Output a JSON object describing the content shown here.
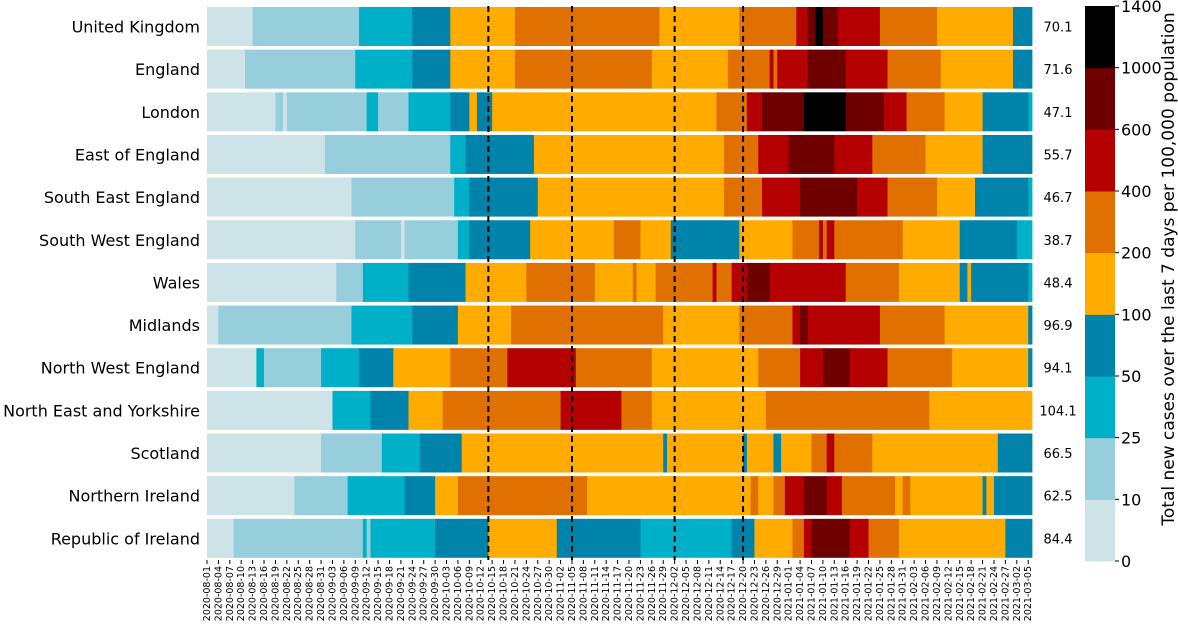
{
  "chart_data": {
    "type": "heatmap",
    "title": "",
    "xlabel": "",
    "ylabel": "",
    "colorbar": {
      "label": "Total new cases over the last 7 days per 100,000 population",
      "bounds": [
        0,
        10,
        25,
        50,
        100,
        200,
        400,
        600,
        1000,
        1400
      ],
      "tick_labels": [
        "0",
        "10",
        "25",
        "50",
        "100",
        "200",
        "400",
        "600",
        "1000",
        "1400"
      ],
      "colors": [
        "#cde3e8",
        "#96cedb",
        "#00b0c8",
        "#0083aa",
        "#ffab00",
        "#e07000",
        "#b40000",
        "#6e0000",
        "#000000"
      ]
    },
    "x_start": "2020-08-01",
    "x_end": "2021-03-06",
    "x_tick_labels": [
      "2020-08-01",
      "2020-08-07",
      "2020-08-13",
      "2020-08-19",
      "2020-08-25",
      "2020-08-31",
      "2020-09-06",
      "2020-09-12",
      "2020-09-18",
      "2020-09-24",
      "2020-09-30",
      "2020-10-06",
      "2020-10-12",
      "2020-10-18",
      "2020-10-24",
      "2020-10-30",
      "2020-11-05",
      "2020-11-11",
      "2020-11-17",
      "2020-11-23",
      "2020-11-29",
      "2020-12-05",
      "2020-12-11",
      "2020-12-17",
      "2020-12-23",
      "2020-12-29",
      "2021-01-04",
      "2021-01-10",
      "2021-01-16",
      "2021-01-22",
      "2021-01-28",
      "2021-02-03",
      "2021-02-09",
      "2021-02-15",
      "2021-02-21",
      "2021-02-27",
      "2021-03-05",
      "2020-08-04",
      "2020-08-10",
      "2020-08-16",
      "2020-08-22",
      "2020-08-28",
      "2020-09-03",
      "2020-09-09",
      "2020-09-15",
      "2020-09-21",
      "2020-09-27",
      "2020-10-03",
      "2020-10-09",
      "2020-10-15",
      "2020-10-21",
      "2020-10-27",
      "2020-11-02",
      "2020-11-08",
      "2020-11-14",
      "2020-11-20",
      "2020-11-26",
      "2020-12-02",
      "2020-12-08",
      "2020-12-14",
      "2020-12-20",
      "2020-12-26",
      "2021-01-01",
      "2021-01-07",
      "2021-01-13",
      "2021-01-19",
      "2021-01-25",
      "2021-01-31",
      "2021-02-06",
      "2021-02-12",
      "2021-02-18",
      "2021-02-24",
      "2021-03-02"
    ],
    "vertical_markers": [
      "2020-10-14",
      "2020-11-05",
      "2020-12-02",
      "2020-12-20"
    ],
    "rows": [
      {
        "name": "United Kingdom",
        "value_label": "70.1",
        "segments": [
          [
            "2020-08-01",
            0
          ],
          [
            "2020-08-13",
            1
          ],
          [
            "2020-09-10",
            2
          ],
          [
            "2020-09-24",
            3
          ],
          [
            "2020-10-04",
            4
          ],
          [
            "2020-10-21",
            5
          ],
          [
            "2020-11-28",
            4
          ],
          [
            "2020-12-19",
            5
          ],
          [
            "2021-01-03",
            6
          ],
          [
            "2021-01-06",
            7
          ],
          [
            "2021-01-08",
            8
          ],
          [
            "2021-01-10",
            7
          ],
          [
            "2021-01-14",
            6
          ],
          [
            "2021-01-25",
            5
          ],
          [
            "2021-02-09",
            4
          ],
          [
            "2021-03-01",
            3
          ]
        ]
      },
      {
        "name": "England",
        "value_label": "71.6",
        "segments": [
          [
            "2020-08-01",
            0
          ],
          [
            "2020-08-11",
            1
          ],
          [
            "2020-09-09",
            2
          ],
          [
            "2020-09-24",
            3
          ],
          [
            "2020-10-04",
            4
          ],
          [
            "2020-10-21",
            5
          ],
          [
            "2020-11-26",
            4
          ],
          [
            "2020-12-16",
            5
          ],
          [
            "2020-12-27",
            6
          ],
          [
            "2020-12-28",
            5
          ],
          [
            "2020-12-29",
            6
          ],
          [
            "2021-01-06",
            7
          ],
          [
            "2021-01-16",
            6
          ],
          [
            "2021-01-27",
            5
          ],
          [
            "2021-02-10",
            4
          ],
          [
            "2021-03-01",
            3
          ]
        ]
      },
      {
        "name": "London",
        "value_label": "47.1",
        "segments": [
          [
            "2020-08-01",
            0
          ],
          [
            "2020-08-19",
            1
          ],
          [
            "2020-08-21",
            0
          ],
          [
            "2020-08-22",
            1
          ],
          [
            "2020-09-12",
            2
          ],
          [
            "2020-09-15",
            1
          ],
          [
            "2020-09-23",
            2
          ],
          [
            "2020-10-04",
            3
          ],
          [
            "2020-10-09",
            4
          ],
          [
            "2020-10-11",
            3
          ],
          [
            "2020-10-15",
            4
          ],
          [
            "2020-12-13",
            5
          ],
          [
            "2020-12-21",
            6
          ],
          [
            "2020-12-25",
            7
          ],
          [
            "2021-01-05",
            8
          ],
          [
            "2021-01-16",
            7
          ],
          [
            "2021-01-26",
            6
          ],
          [
            "2021-02-01",
            5
          ],
          [
            "2021-02-11",
            4
          ],
          [
            "2021-02-21",
            3
          ],
          [
            "2021-03-05",
            2
          ]
        ]
      },
      {
        "name": "East of England",
        "value_label": "55.7",
        "segments": [
          [
            "2020-08-01",
            0
          ],
          [
            "2020-09-01",
            1
          ],
          [
            "2020-10-04",
            2
          ],
          [
            "2020-10-08",
            3
          ],
          [
            "2020-10-26",
            4
          ],
          [
            "2020-12-15",
            5
          ],
          [
            "2020-12-24",
            6
          ],
          [
            "2021-01-01",
            7
          ],
          [
            "2021-01-13",
            6
          ],
          [
            "2021-01-23",
            5
          ],
          [
            "2021-02-06",
            4
          ],
          [
            "2021-02-21",
            3
          ]
        ]
      },
      {
        "name": "South East England",
        "value_label": "46.7",
        "segments": [
          [
            "2020-08-01",
            0
          ],
          [
            "2020-09-08",
            1
          ],
          [
            "2020-10-05",
            2
          ],
          [
            "2020-10-09",
            3
          ],
          [
            "2020-10-27",
            4
          ],
          [
            "2020-12-15",
            5
          ],
          [
            "2020-12-25",
            6
          ],
          [
            "2021-01-04",
            7
          ],
          [
            "2021-01-19",
            6
          ],
          [
            "2021-01-27",
            5
          ],
          [
            "2021-02-09",
            4
          ],
          [
            "2021-02-19",
            3
          ],
          [
            "2021-03-05",
            2
          ]
        ]
      },
      {
        "name": "South West England",
        "value_label": "38.7",
        "segments": [
          [
            "2020-08-01",
            0
          ],
          [
            "2020-09-09",
            1
          ],
          [
            "2020-09-21",
            0
          ],
          [
            "2020-09-22",
            1
          ],
          [
            "2020-10-06",
            2
          ],
          [
            "2020-10-09",
            3
          ],
          [
            "2020-10-25",
            4
          ],
          [
            "2020-11-16",
            5
          ],
          [
            "2020-11-23",
            4
          ],
          [
            "2020-12-01",
            3
          ],
          [
            "2020-12-19",
            4
          ],
          [
            "2021-01-02",
            5
          ],
          [
            "2021-01-09",
            6
          ],
          [
            "2021-01-10",
            5
          ],
          [
            "2021-01-11",
            6
          ],
          [
            "2021-01-13",
            5
          ],
          [
            "2021-01-31",
            4
          ],
          [
            "2021-02-15",
            3
          ],
          [
            "2021-03-02",
            2
          ]
        ]
      },
      {
        "name": "Wales",
        "value_label": "48.4",
        "segments": [
          [
            "2020-08-01",
            0
          ],
          [
            "2020-09-04",
            1
          ],
          [
            "2020-09-11",
            2
          ],
          [
            "2020-09-23",
            3
          ],
          [
            "2020-10-08",
            4
          ],
          [
            "2020-10-24",
            5
          ],
          [
            "2020-11-11",
            4
          ],
          [
            "2020-11-21",
            5
          ],
          [
            "2020-11-22",
            4
          ],
          [
            "2020-11-27",
            5
          ],
          [
            "2020-12-12",
            6
          ],
          [
            "2020-12-13",
            5
          ],
          [
            "2020-12-17",
            6
          ],
          [
            "2020-12-21",
            7
          ],
          [
            "2020-12-27",
            6
          ],
          [
            "2021-01-16",
            5
          ],
          [
            "2021-01-30",
            4
          ],
          [
            "2021-02-15",
            3
          ],
          [
            "2021-02-17",
            4
          ],
          [
            "2021-02-18",
            3
          ],
          [
            "2021-03-05",
            2
          ]
        ]
      },
      {
        "name": "Midlands",
        "value_label": "96.9",
        "segments": [
          [
            "2020-08-01",
            0
          ],
          [
            "2020-08-04",
            1
          ],
          [
            "2020-09-08",
            2
          ],
          [
            "2020-09-24",
            3
          ],
          [
            "2020-10-06",
            4
          ],
          [
            "2020-10-20",
            5
          ],
          [
            "2020-11-29",
            4
          ],
          [
            "2020-12-19",
            5
          ],
          [
            "2021-01-02",
            6
          ],
          [
            "2021-01-04",
            7
          ],
          [
            "2021-01-06",
            6
          ],
          [
            "2021-01-25",
            5
          ],
          [
            "2021-02-11",
            4
          ],
          [
            "2021-03-05",
            3
          ]
        ]
      },
      {
        "name": "North West England",
        "value_label": "94.1",
        "segments": [
          [
            "2020-08-01",
            0
          ],
          [
            "2020-08-14",
            2
          ],
          [
            "2020-08-16",
            1
          ],
          [
            "2020-08-31",
            2
          ],
          [
            "2020-09-10",
            3
          ],
          [
            "2020-09-19",
            4
          ],
          [
            "2020-10-04",
            5
          ],
          [
            "2020-10-19",
            6
          ],
          [
            "2020-11-06",
            5
          ],
          [
            "2020-11-26",
            4
          ],
          [
            "2020-12-24",
            5
          ],
          [
            "2021-01-04",
            6
          ],
          [
            "2021-01-10",
            7
          ],
          [
            "2021-01-17",
            6
          ],
          [
            "2021-01-27",
            5
          ],
          [
            "2021-02-13",
            4
          ],
          [
            "2021-03-05",
            3
          ]
        ]
      },
      {
        "name": "North East and Yorkshire",
        "value_label": "104.1",
        "segments": [
          [
            "2020-08-01",
            0
          ],
          [
            "2020-09-03",
            2
          ],
          [
            "2020-09-13",
            3
          ],
          [
            "2020-09-23",
            4
          ],
          [
            "2020-10-02",
            5
          ],
          [
            "2020-11-02",
            6
          ],
          [
            "2020-11-18",
            5
          ],
          [
            "2020-11-26",
            4
          ],
          [
            "2020-12-26",
            5
          ],
          [
            "2021-02-07",
            4
          ]
        ]
      },
      {
        "name": "Scotland",
        "value_label": "66.5",
        "segments": [
          [
            "2020-08-01",
            0
          ],
          [
            "2020-08-31",
            1
          ],
          [
            "2020-09-16",
            2
          ],
          [
            "2020-09-26",
            3
          ],
          [
            "2020-10-07",
            4
          ],
          [
            "2020-11-29",
            3
          ],
          [
            "2020-11-30",
            4
          ],
          [
            "2020-12-20",
            3
          ],
          [
            "2020-12-21",
            4
          ],
          [
            "2020-12-28",
            3
          ],
          [
            "2020-12-30",
            4
          ],
          [
            "2021-01-07",
            5
          ],
          [
            "2021-01-11",
            6
          ],
          [
            "2021-01-13",
            5
          ],
          [
            "2021-01-23",
            4
          ],
          [
            "2021-02-25",
            3
          ]
        ]
      },
      {
        "name": "Northern Ireland",
        "value_label": "62.5",
        "segments": [
          [
            "2020-08-01",
            0
          ],
          [
            "2020-08-24",
            1
          ],
          [
            "2020-09-07",
            2
          ],
          [
            "2020-09-22",
            3
          ],
          [
            "2020-09-30",
            4
          ],
          [
            "2020-10-06",
            5
          ],
          [
            "2020-11-09",
            4
          ],
          [
            "2020-12-22",
            5
          ],
          [
            "2020-12-24",
            4
          ],
          [
            "2020-12-28",
            5
          ],
          [
            "2020-12-31",
            6
          ],
          [
            "2021-01-05",
            7
          ],
          [
            "2021-01-11",
            6
          ],
          [
            "2021-01-15",
            5
          ],
          [
            "2021-01-29",
            4
          ],
          [
            "2021-01-31",
            5
          ],
          [
            "2021-02-02",
            4
          ],
          [
            "2021-02-21",
            3
          ],
          [
            "2021-02-22",
            4
          ],
          [
            "2021-02-24",
            3
          ]
        ]
      },
      {
        "name": "Republic of Ireland",
        "value_label": "84.4",
        "segments": [
          [
            "2020-08-01",
            0
          ],
          [
            "2020-08-08",
            1
          ],
          [
            "2020-09-11",
            2
          ],
          [
            "2020-09-12",
            1
          ],
          [
            "2020-09-13",
            2
          ],
          [
            "2020-09-30",
            3
          ],
          [
            "2020-10-14",
            4
          ],
          [
            "2020-11-01",
            3
          ],
          [
            "2020-11-23",
            2
          ],
          [
            "2020-12-17",
            3
          ],
          [
            "2020-12-23",
            4
          ],
          [
            "2021-01-02",
            5
          ],
          [
            "2021-01-05",
            6
          ],
          [
            "2021-01-07",
            7
          ],
          [
            "2021-01-17",
            6
          ],
          [
            "2021-01-22",
            5
          ],
          [
            "2021-01-30",
            4
          ],
          [
            "2021-02-27",
            3
          ]
        ]
      }
    ]
  }
}
